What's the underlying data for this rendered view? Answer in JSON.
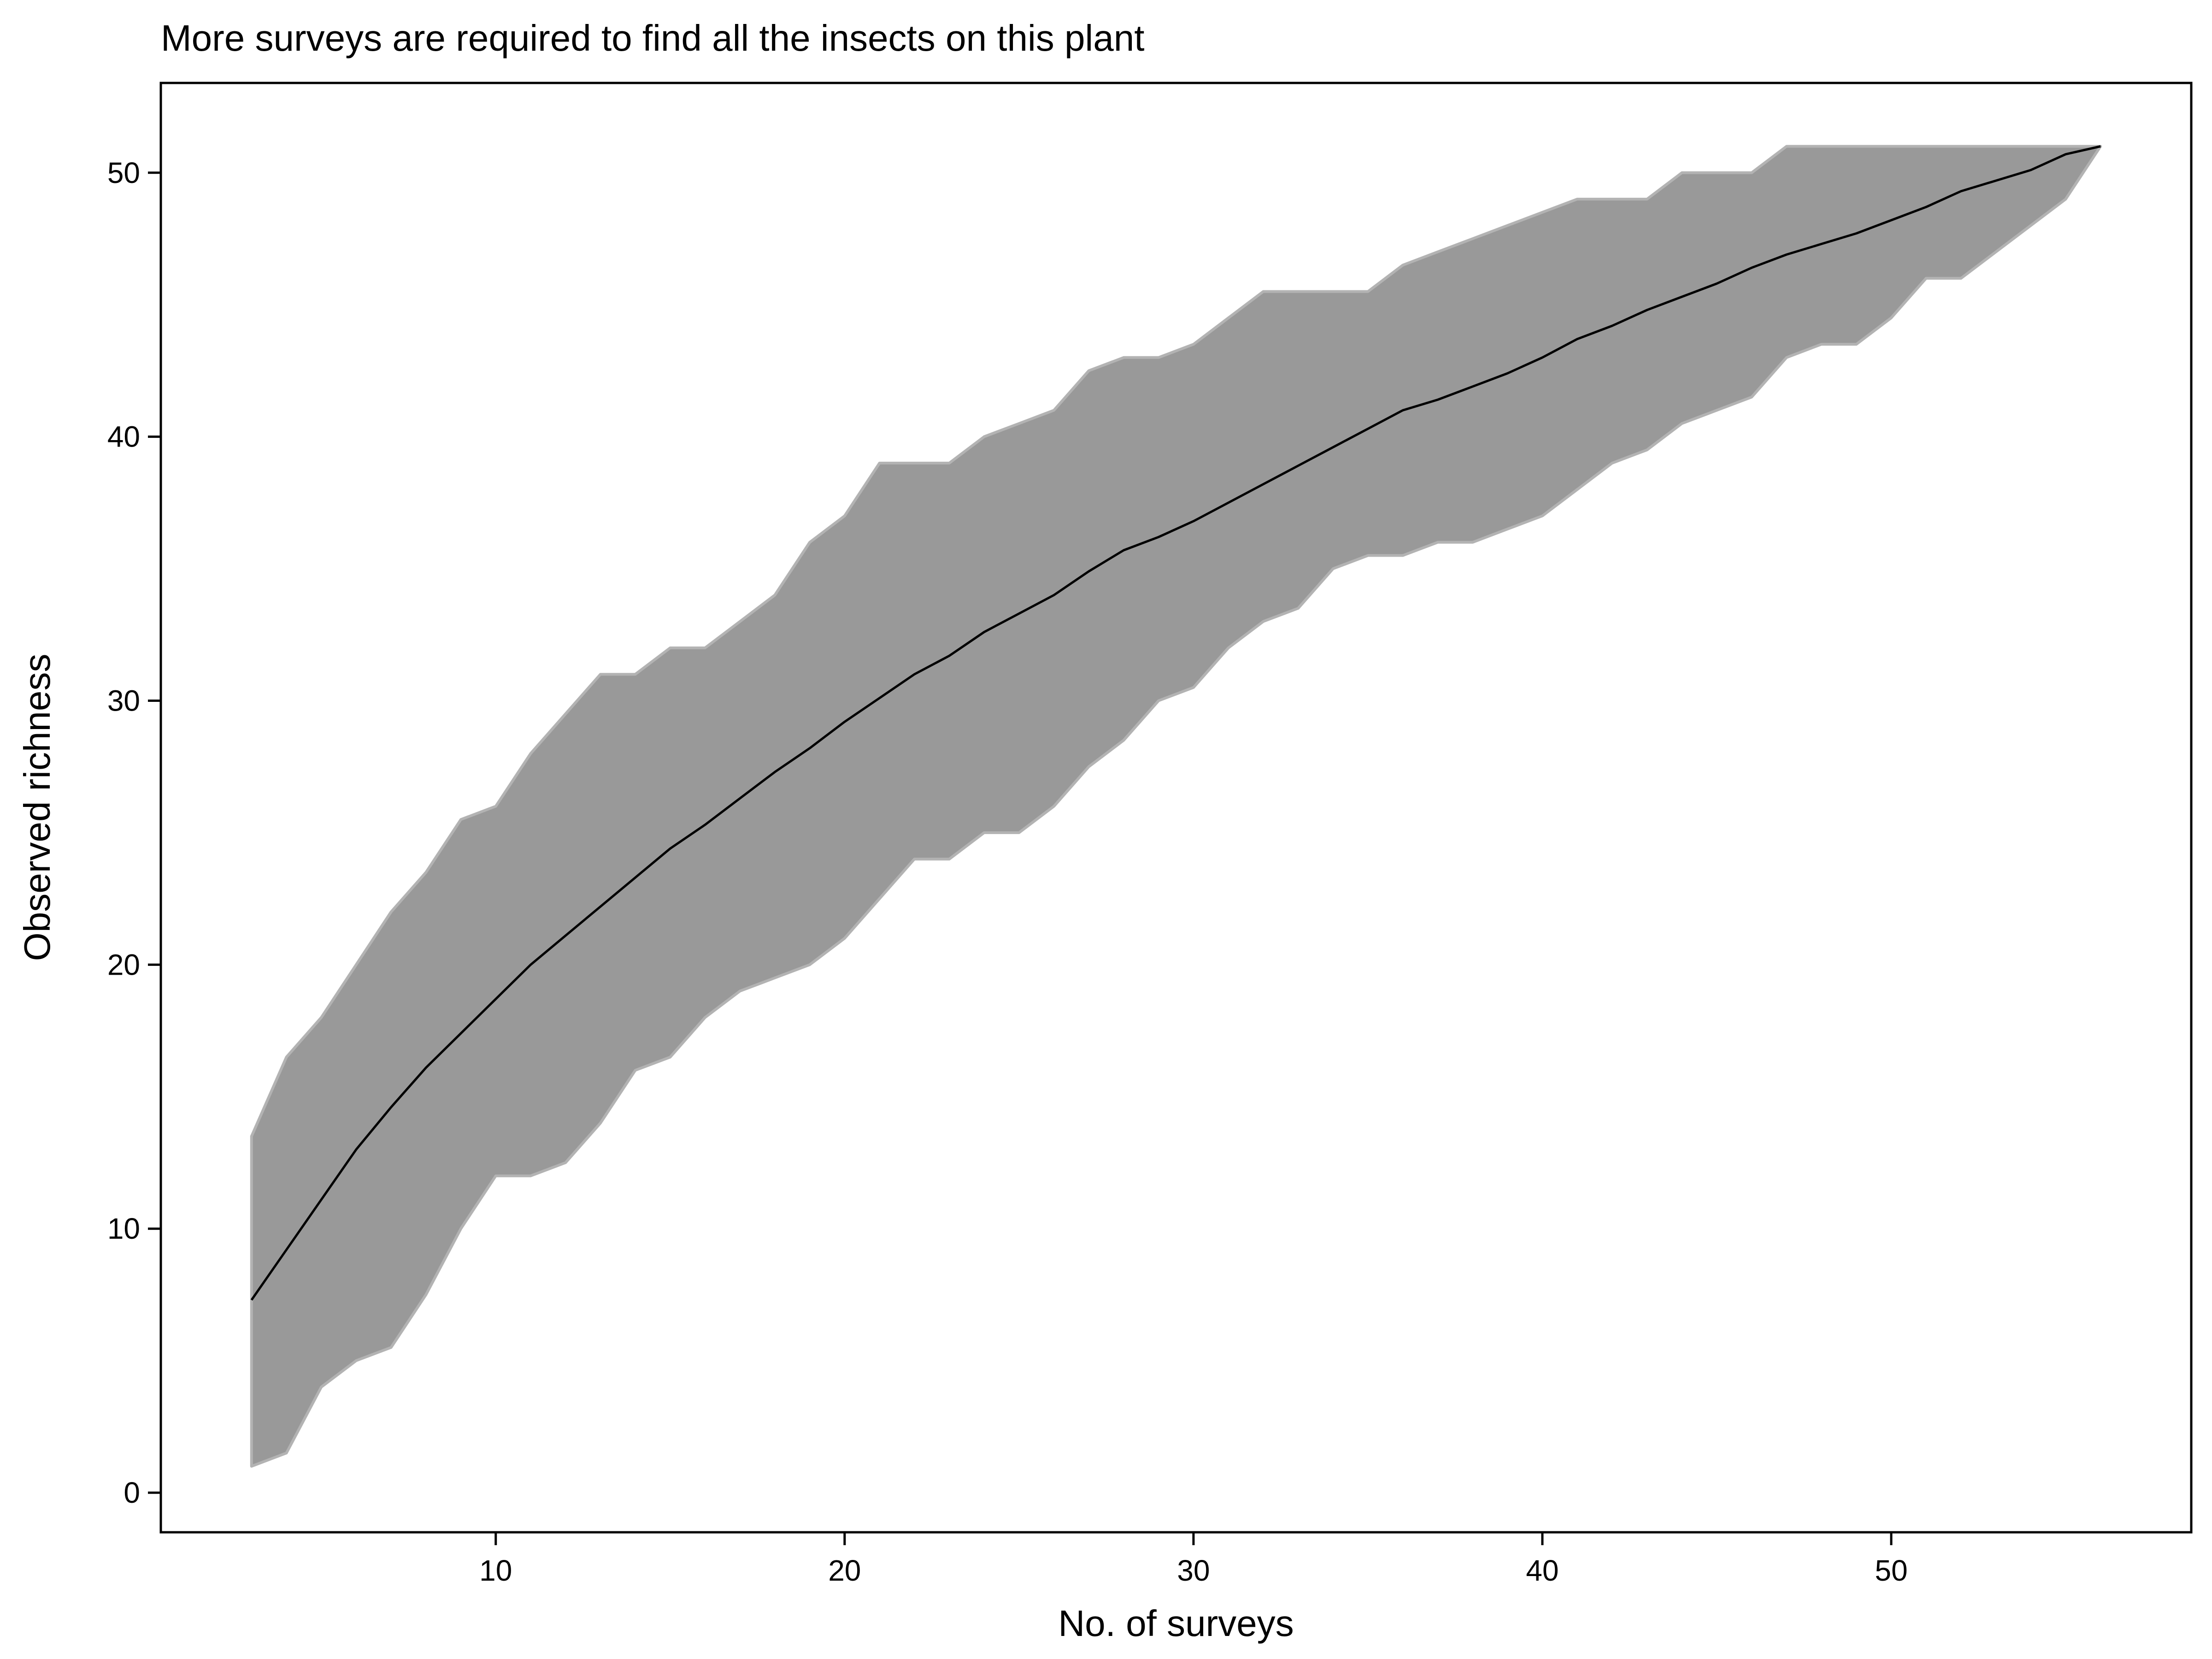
{
  "chart_data": {
    "type": "area",
    "title": "More surveys are required to find all the insects on this plant",
    "xlabel": "No. of surveys",
    "ylabel": "Observed richness",
    "xlim": [
      0.4,
      58.6
    ],
    "ylim": [
      -1.5,
      53.4
    ],
    "xticks": [
      10,
      20,
      30,
      40,
      50
    ],
    "yticks": [
      0,
      10,
      20,
      30,
      40,
      50
    ],
    "grid": false,
    "legend": "none",
    "x": [
      3,
      4,
      5,
      6,
      7,
      8,
      9,
      10,
      11,
      12,
      13,
      14,
      15,
      16,
      17,
      18,
      19,
      20,
      21,
      22,
      23,
      24,
      25,
      26,
      27,
      28,
      29,
      30,
      31,
      32,
      33,
      34,
      35,
      36,
      37,
      38,
      39,
      40,
      41,
      42,
      43,
      44,
      45,
      46,
      47,
      48,
      49,
      50,
      51,
      52,
      53,
      54,
      55,
      56
    ],
    "series": [
      {
        "role": "mean",
        "values": [
          7.3,
          9.2,
          11.1,
          13.0,
          14.6,
          16.1,
          17.4,
          18.7,
          20.0,
          21.1,
          22.2,
          23.3,
          24.4,
          25.3,
          26.3,
          27.3,
          28.2,
          29.2,
          30.1,
          31.0,
          31.7,
          32.6,
          33.3,
          34.0,
          34.9,
          35.7,
          36.2,
          36.8,
          37.5,
          38.2,
          38.9,
          39.6,
          40.3,
          41.0,
          41.4,
          41.9,
          42.4,
          43.0,
          43.7,
          44.2,
          44.8,
          45.3,
          45.8,
          46.4,
          46.9,
          47.3,
          47.7,
          48.2,
          48.7,
          49.3,
          49.7,
          50.1,
          50.7,
          51.0
        ]
      },
      {
        "role": "upper",
        "values": [
          13.5,
          16.5,
          18.0,
          20.0,
          22.0,
          23.5,
          25.5,
          26.0,
          28.0,
          29.5,
          31.0,
          31.0,
          32.0,
          32.0,
          33.0,
          34.0,
          36.0,
          37.0,
          39.0,
          39.0,
          39.0,
          40.0,
          40.5,
          41.0,
          42.5,
          43.0,
          43.0,
          43.5,
          44.5,
          45.5,
          45.5,
          45.5,
          45.5,
          46.5,
          47.0,
          47.5,
          48.0,
          48.5,
          49.0,
          49.0,
          49.0,
          50.0,
          50.0,
          50.0,
          51.0,
          51.0,
          51.0,
          51.0,
          51.0,
          51.0,
          51.0,
          51.0,
          51.0,
          51.0
        ]
      },
      {
        "role": "lower",
        "values": [
          1.0,
          1.5,
          4.0,
          5.0,
          5.5,
          7.5,
          10.0,
          12.0,
          12.0,
          12.5,
          14.0,
          16.0,
          16.5,
          18.0,
          19.0,
          19.5,
          20.0,
          21.0,
          22.5,
          24.0,
          24.0,
          25.0,
          25.0,
          26.0,
          27.5,
          28.5,
          30.0,
          30.5,
          32.0,
          33.0,
          33.5,
          35.0,
          35.5,
          35.5,
          36.0,
          36.0,
          36.5,
          37.0,
          38.0,
          39.0,
          39.5,
          40.5,
          41.0,
          41.5,
          43.0,
          43.5,
          43.5,
          44.5,
          46.0,
          46.0,
          47.0,
          48.0,
          49.0,
          51.0
        ]
      }
    ],
    "colors": {
      "ribbon_fill": "#999999",
      "ribbon_edge": "#b3b3b3",
      "line": "#000000",
      "axis": "#000000"
    }
  }
}
